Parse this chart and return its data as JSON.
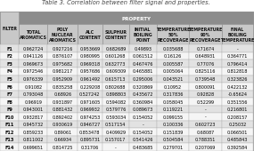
{
  "title": "Table 3. Correlation between filter signal and properties.",
  "columns": [
    "FILTER",
    "TOTAL\nAROMATICS",
    "POLY\nNUCLEAR\nAROMATICS",
    "ALC\nCONTENT",
    "SULPHUR\nCONTENT",
    "INITIAL\nBOILING\nPOINT",
    "TEMPERATURE\n50%\nRECOVERAGE",
    "TEMPERATURE\n90%\nRECOVERAGE",
    "FINAL\nBOILING\nTEMPERATURE"
  ],
  "rows": [
    [
      "F1",
      "0.962724",
      "0.927216",
      "0.953669",
      "0.682689",
      "0.49893",
      "0.035688",
      "0.71674",
      "-"
    ],
    [
      "F2",
      "0.941126",
      "0.876107",
      "0.980995",
      "0.601268",
      "0.061512",
      "0.16126",
      "0.648931",
      "0.364771"
    ],
    [
      "F3",
      "0.969673",
      "0.975682",
      "0.969318",
      "0.632773",
      "0.467476",
      "0.005587",
      "0.77076",
      "0.796414"
    ],
    [
      "F4",
      "0.972546",
      "0.981217",
      "0.957686",
      "0.609309",
      "0.465881",
      "0.005064",
      "0.825116",
      "0.812818"
    ],
    [
      "F5",
      "0.976339",
      "0.952909",
      "0.961492",
      "0.615713",
      "0.295006",
      "0.043521",
      "0.739548",
      "0.323826"
    ],
    [
      "F6",
      "0.91082",
      "0.835258",
      "0.229208",
      "0.802688",
      "0.320869",
      "0.10952",
      "0.800091",
      "0.422132"
    ],
    [
      "F7",
      "0.793048",
      "0.68926",
      "0.527242",
      "0.898803",
      "0.435672",
      "0.317836",
      "0.92828",
      "-0.65624"
    ],
    [
      "F8",
      "0.96919",
      "0.931897",
      "0.971605",
      "0.594082",
      "0.360984",
      "0.058045",
      "0.52299",
      "0.351556"
    ],
    [
      "F9",
      "0.943001",
      "0.881432",
      "0.969932",
      "0.579776",
      "0.089673",
      "0.119221",
      "-",
      "0.216801"
    ],
    [
      "F10",
      "0.932817",
      "0.892402",
      "0.974253",
      "0.593034",
      "0.154052",
      "0.099155",
      "-",
      "0.208157"
    ],
    [
      "F11",
      "0.945732",
      "0.930619",
      "0.946727",
      "0.517154",
      "-",
      "0.100336",
      "0.602723",
      "0.25032"
    ],
    [
      "F12",
      "0.859233",
      "0.89061",
      "0.853478",
      "0.409929",
      "0.154052",
      "0.151839",
      "0.68087",
      "0.066501"
    ],
    [
      "F13",
      "0.811002",
      "0.66934",
      "0.895731",
      "0.157017",
      "0.541426",
      "0.504584",
      "0.788351",
      "0.485843"
    ],
    [
      "F14",
      "0.699651",
      "0.814725",
      "0.31706",
      "-",
      "0.483685",
      "0.279701",
      "0.207069",
      "0.392584"
    ]
  ],
  "col_widths_rel": [
    0.7,
    1.05,
    1.1,
    0.9,
    1.0,
    1.0,
    1.2,
    1.2,
    1.15
  ],
  "header_bg": "#8c8c8c",
  "subheader_bg": "#c8c8c8",
  "even_row_bg": "#e2e2e2",
  "odd_row_bg": "#f5f5f5",
  "header_text_color": "#ffffff",
  "subheader_text_color": "#111111",
  "border_color": "#999999",
  "title_fontsize": 4.8,
  "header_fontsize": 3.6,
  "subheader_fontsize": 3.4,
  "data_fontsize": 3.5,
  "filter_fontsize": 3.6
}
